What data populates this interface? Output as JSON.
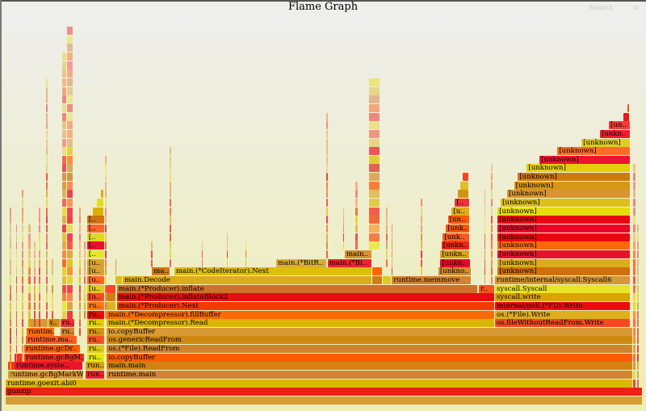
{
  "title": "Flame Graph",
  "controls": {
    "search_label": "Search",
    "ignorecase_label": "ic"
  },
  "units": "percent of total samples",
  "frames": [
    {
      "depth": 0,
      "start": 0,
      "end": 100,
      "name": ""
    },
    {
      "depth": 1,
      "start": 0,
      "end": 100,
      "name": "gunzip"
    },
    {
      "depth": 2,
      "start": 0,
      "end": 98.5,
      "name": "runtime.goexit.abi0"
    },
    {
      "depth": 3,
      "start": 0.4,
      "end": 12.2,
      "name": "runtime.gcBgMarkW.."
    },
    {
      "depth": 3,
      "start": 12.6,
      "end": 15.6,
      "name": "run.."
    },
    {
      "depth": 3,
      "start": 15.9,
      "end": 98.5,
      "name": "runtime.main"
    },
    {
      "depth": 4,
      "start": 0.4,
      "end": 1.4,
      "name": ""
    },
    {
      "depth": 4,
      "start": 1.4,
      "end": 12.1,
      "name": "runtime.syste.."
    },
    {
      "depth": 4,
      "start": 12.6,
      "end": 15.6,
      "name": "run.."
    },
    {
      "depth": 4,
      "start": 15.9,
      "end": 98.5,
      "name": "main.main"
    },
    {
      "depth": 5,
      "start": 1.4,
      "end": 2.9,
      "name": ""
    },
    {
      "depth": 5,
      "start": 2.9,
      "end": 12.4,
      "name": "runtime.gcBgM.."
    },
    {
      "depth": 5,
      "start": 12.8,
      "end": 15.6,
      "name": "ru.."
    },
    {
      "depth": 5,
      "start": 15.9,
      "end": 98.5,
      "name": "io.copyBuffer"
    },
    {
      "depth": 6,
      "start": 2.9,
      "end": 11.8,
      "name": "runtime.gcDr.."
    },
    {
      "depth": 6,
      "start": 12.8,
      "end": 15.6,
      "name": "ru.."
    },
    {
      "depth": 6,
      "start": 15.9,
      "end": 98.5,
      "name": "os.(*File).ReadFrom"
    },
    {
      "depth": 7,
      "start": 3.2,
      "end": 11.2,
      "name": "runtime.ma.."
    },
    {
      "depth": 7,
      "start": 12.8,
      "end": 15.6,
      "name": "ru.."
    },
    {
      "depth": 7,
      "start": 15.9,
      "end": 98.5,
      "name": "os.genericReadFrom"
    },
    {
      "depth": 8,
      "start": 3.3,
      "end": 7.7,
      "name": "runtim.."
    },
    {
      "depth": 8,
      "start": 8.6,
      "end": 10.9,
      "name": "ru.."
    },
    {
      "depth": 8,
      "start": 12.8,
      "end": 15.6,
      "name": "ru.."
    },
    {
      "depth": 8,
      "start": 15.9,
      "end": 98.5,
      "name": "io.copyBuffer"
    },
    {
      "depth": 9,
      "start": 3.6,
      "end": 6.7,
      "name": ""
    },
    {
      "depth": 9,
      "start": 6.7,
      "end": 8.6,
      "name": "r.."
    },
    {
      "depth": 9,
      "start": 8.6,
      "end": 10.9,
      "name": "ru.."
    },
    {
      "depth": 9,
      "start": 12.8,
      "end": 15.6,
      "name": "ru.."
    },
    {
      "depth": 9,
      "start": 15.9,
      "end": 76.8,
      "name": "main.(*Decompressor).Read"
    },
    {
      "depth": 9,
      "start": 76.9,
      "end": 98.1,
      "name": "os.fileWithoutReadFrom.Write"
    },
    {
      "depth": 10,
      "start": 12.8,
      "end": 15.6,
      "name": "ru.."
    },
    {
      "depth": 10,
      "start": 15.9,
      "end": 76.8,
      "name": "main.(*Decompressor).fillBuffer"
    },
    {
      "depth": 10,
      "start": 76.9,
      "end": 98.1,
      "name": "os.(*File).Write"
    },
    {
      "depth": 11,
      "start": 12.8,
      "end": 15.6,
      "name": "ru.."
    },
    {
      "depth": 11,
      "start": 15.9,
      "end": 17.3,
      "name": ""
    },
    {
      "depth": 11,
      "start": 17.5,
      "end": 76.8,
      "name": "main.(*Producer).Next"
    },
    {
      "depth": 11,
      "start": 76.9,
      "end": 98.1,
      "name": "internal/poll.(*FD).Write"
    },
    {
      "depth": 12,
      "start": 12.8,
      "end": 15.6,
      "name": "[u.."
    },
    {
      "depth": 12,
      "start": 15.9,
      "end": 17.3,
      "name": ""
    },
    {
      "depth": 12,
      "start": 17.5,
      "end": 76.8,
      "name": "main.(*Producer).inflateBlock2"
    },
    {
      "depth": 12,
      "start": 76.9,
      "end": 98.1,
      "name": "syscall.write"
    },
    {
      "depth": 13,
      "start": 12.8,
      "end": 15.6,
      "name": "[u.."
    },
    {
      "depth": 13,
      "start": 15.9,
      "end": 17.3,
      "name": ""
    },
    {
      "depth": 13,
      "start": 17.5,
      "end": 74.2,
      "name": "main.(*Producer).inflate"
    },
    {
      "depth": 13,
      "start": 74.4,
      "end": 76.8,
      "name": "r.."
    },
    {
      "depth": 13,
      "start": 76.9,
      "end": 98.1,
      "name": "syscall.Syscall"
    },
    {
      "depth": 14,
      "start": 12.8,
      "end": 15.6,
      "name": "[u.."
    },
    {
      "depth": 14,
      "start": 17.3,
      "end": 18.3,
      "name": ""
    },
    {
      "depth": 14,
      "start": 18.4,
      "end": 57.5,
      "name": "main.Decode"
    },
    {
      "depth": 14,
      "start": 57.6,
      "end": 59.2,
      "name": ""
    },
    {
      "depth": 14,
      "start": 59.3,
      "end": 60.6,
      "name": ""
    },
    {
      "depth": 14,
      "start": 60.7,
      "end": 73.1,
      "name": "runtime.memmove"
    },
    {
      "depth": 14,
      "start": 76.9,
      "end": 98.1,
      "name": "runtime/internal/syscall.Syscall6"
    },
    {
      "depth": 15,
      "start": 12.8,
      "end": 15.6,
      "name": "[u.."
    },
    {
      "depth": 15,
      "start": 23.0,
      "end": 25.8,
      "name": "ma.."
    },
    {
      "depth": 15,
      "start": 26.5,
      "end": 57.5,
      "name": "main.(*CodeIterator).Next"
    },
    {
      "depth": 15,
      "start": 57.6,
      "end": 59.2,
      "name": ""
    },
    {
      "depth": 15,
      "start": 68.0,
      "end": 73.1,
      "name": "[unkno.."
    },
    {
      "depth": 15,
      "start": 77.3,
      "end": 98.1,
      "name": "[unknown]"
    },
    {
      "depth": 16,
      "start": 12.8,
      "end": 15.6,
      "name": "[u.."
    },
    {
      "depth": 16,
      "start": 42.5,
      "end": 50.5,
      "name": "main.(*BitR.."
    },
    {
      "depth": 16,
      "start": 50.6,
      "end": 57.5,
      "name": "main.(*Bi.."
    },
    {
      "depth": 16,
      "start": 68.3,
      "end": 73.0,
      "name": "[unkn.."
    },
    {
      "depth": 16,
      "start": 77.3,
      "end": 98.1,
      "name": "[unknown]"
    },
    {
      "depth": 17,
      "start": 12.8,
      "end": 15.6,
      "name": "[.."
    },
    {
      "depth": 17,
      "start": 53.3,
      "end": 57.5,
      "name": "main.."
    },
    {
      "depth": 17,
      "start": 68.3,
      "end": 72.9,
      "name": "[unkn.."
    },
    {
      "depth": 17,
      "start": 77.3,
      "end": 98.1,
      "name": "[unknown]"
    },
    {
      "depth": 18,
      "start": 12.8,
      "end": 15.6,
      "name": "[.."
    },
    {
      "depth": 18,
      "start": 68.5,
      "end": 72.9,
      "name": "[unkn.."
    },
    {
      "depth": 18,
      "start": 77.3,
      "end": 98.1,
      "name": "[unknown]"
    },
    {
      "depth": 19,
      "start": 12.8,
      "end": 15.6,
      "name": "[.."
    },
    {
      "depth": 19,
      "start": 68.7,
      "end": 72.9,
      "name": "[unk.."
    },
    {
      "depth": 19,
      "start": 77.3,
      "end": 98.1,
      "name": "[unknown]"
    },
    {
      "depth": 20,
      "start": 12.8,
      "end": 15.6,
      "name": "[.."
    },
    {
      "depth": 20,
      "start": 69.2,
      "end": 72.9,
      "name": "[unk.."
    },
    {
      "depth": 20,
      "start": 77.3,
      "end": 98.1,
      "name": "[unknown]"
    },
    {
      "depth": 21,
      "start": 12.8,
      "end": 15.6,
      "name": "[.."
    },
    {
      "depth": 21,
      "start": 69.5,
      "end": 72.9,
      "name": "[un.."
    },
    {
      "depth": 21,
      "start": 77.3,
      "end": 98.1,
      "name": "[unknown]"
    },
    {
      "depth": 22,
      "start": 13.7,
      "end": 15.4,
      "name": ""
    },
    {
      "depth": 22,
      "start": 70.1,
      "end": 72.9,
      "name": "[u.."
    },
    {
      "depth": 22,
      "start": 77.3,
      "end": 98.1,
      "name": "[unknown]"
    },
    {
      "depth": 23,
      "start": 14.3,
      "end": 15.4,
      "name": ""
    },
    {
      "depth": 23,
      "start": 70.6,
      "end": 72.9,
      "name": "[.."
    },
    {
      "depth": 23,
      "start": 77.8,
      "end": 98.1,
      "name": "[unknown]"
    },
    {
      "depth": 24,
      "start": 15.0,
      "end": 15.4,
      "name": ""
    },
    {
      "depth": 24,
      "start": 71.1,
      "end": 72.8,
      "name": ""
    },
    {
      "depth": 24,
      "start": 78.8,
      "end": 98.1,
      "name": "[unknown]"
    },
    {
      "depth": 25,
      "start": 71.4,
      "end": 72.8,
      "name": ""
    },
    {
      "depth": 25,
      "start": 79.9,
      "end": 98.1,
      "name": "[unknown]"
    },
    {
      "depth": 26,
      "start": 71.8,
      "end": 72.8,
      "name": ""
    },
    {
      "depth": 26,
      "start": 80.5,
      "end": 98.1,
      "name": "[unknown]"
    },
    {
      "depth": 27,
      "start": 81.9,
      "end": 98.1,
      "name": "[unknown]"
    },
    {
      "depth": 28,
      "start": 83.9,
      "end": 98.1,
      "name": "[unknown]"
    },
    {
      "depth": 29,
      "start": 86.7,
      "end": 98.1,
      "name": "[unknown]"
    },
    {
      "depth": 30,
      "start": 90.5,
      "end": 98.1,
      "name": "[unknown]"
    },
    {
      "depth": 31,
      "start": 93.4,
      "end": 98.1,
      "name": "[unkn.."
    },
    {
      "depth": 32,
      "start": 94.8,
      "end": 98.1,
      "name": "[un.."
    },
    {
      "depth": 33,
      "start": 97.1,
      "end": 98.0,
      "name": ""
    },
    {
      "depth": 34,
      "start": 97.7,
      "end": 98.0,
      "name": ""
    }
  ],
  "minor_stacks": [
    {
      "start": 0.6,
      "end": 0.9,
      "from": 3,
      "to": 22
    },
    {
      "start": 1.6,
      "end": 1.9,
      "from": 5,
      "to": 20
    },
    {
      "start": 2.6,
      "end": 2.9,
      "from": 5,
      "to": 24
    },
    {
      "start": 3.6,
      "end": 4.0,
      "from": 9,
      "to": 20
    },
    {
      "start": 4.4,
      "end": 4.7,
      "from": 9,
      "to": 18
    },
    {
      "start": 5.2,
      "end": 5.5,
      "from": 9,
      "to": 22
    },
    {
      "start": 6.3,
      "end": 6.6,
      "from": 10,
      "to": 37
    },
    {
      "start": 7.2,
      "end": 7.5,
      "from": 9,
      "to": 16
    },
    {
      "start": 8.9,
      "end": 9.6,
      "from": 10,
      "to": 40
    },
    {
      "start": 9.7,
      "end": 10.6,
      "from": 10,
      "to": 43
    },
    {
      "start": 11.6,
      "end": 11.9,
      "from": 8,
      "to": 22
    },
    {
      "start": 12.3,
      "end": 12.6,
      "from": 10,
      "to": 18
    },
    {
      "start": 15.6,
      "end": 15.9,
      "from": 10,
      "to": 28
    },
    {
      "start": 17.2,
      "end": 17.5,
      "from": 15,
      "to": 16
    },
    {
      "start": 22.8,
      "end": 23.1,
      "from": 16,
      "to": 18
    },
    {
      "start": 25.8,
      "end": 26.1,
      "from": 16,
      "to": 29
    },
    {
      "start": 30.8,
      "end": 31.0,
      "from": 16,
      "to": 18
    },
    {
      "start": 34.8,
      "end": 35.0,
      "from": 16,
      "to": 19
    },
    {
      "start": 37.7,
      "end": 37.9,
      "from": 16,
      "to": 18
    },
    {
      "start": 50.4,
      "end": 50.7,
      "from": 17,
      "to": 33
    },
    {
      "start": 53.0,
      "end": 53.3,
      "from": 18,
      "to": 22
    },
    {
      "start": 55.0,
      "end": 55.4,
      "from": 18,
      "to": 25
    },
    {
      "start": 57.1,
      "end": 58.8,
      "from": 18,
      "to": 37
    },
    {
      "start": 59.8,
      "end": 60.1,
      "from": 16,
      "to": 22
    },
    {
      "start": 60.6,
      "end": 60.9,
      "from": 15,
      "to": 20
    },
    {
      "start": 65.2,
      "end": 65.5,
      "from": 15,
      "to": 23
    },
    {
      "start": 75.2,
      "end": 75.5,
      "from": 14,
      "to": 24
    },
    {
      "start": 76.3,
      "end": 76.6,
      "from": 14,
      "to": 27
    },
    {
      "start": 98.6,
      "end": 99.0,
      "from": 2,
      "to": 27
    },
    {
      "start": 99.2,
      "end": 99.6,
      "from": 2,
      "to": 20
    }
  ]
}
